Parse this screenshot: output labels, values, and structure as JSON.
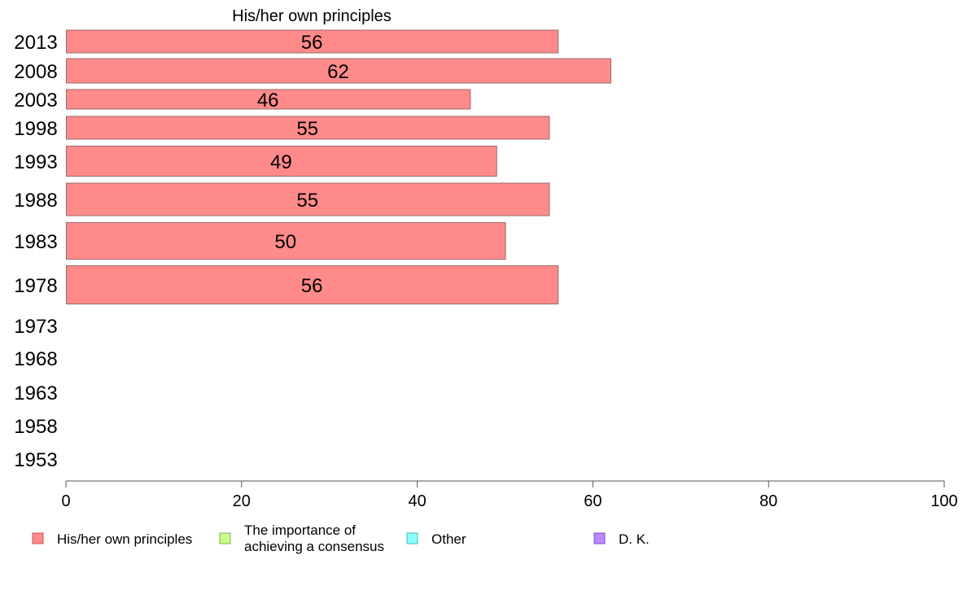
{
  "chart_data": {
    "type": "bar",
    "orientation": "horizontal",
    "title": "His/her own principles",
    "categories": [
      "2013",
      "2008",
      "2003",
      "1998",
      "1993",
      "1988",
      "1983",
      "1978",
      "1973",
      "1968",
      "1963",
      "1958",
      "1953"
    ],
    "series": [
      {
        "name": "His/her own principles",
        "color": "#ff8a8a",
        "values": [
          56,
          62,
          46,
          55,
          49,
          55,
          50,
          56,
          null,
          null,
          null,
          null,
          null
        ],
        "labels": [
          "56",
          "62",
          "46",
          "55",
          "49",
          "55",
          "50",
          "56",
          "",
          "",
          "",
          "",
          ""
        ]
      }
    ],
    "xlim": [
      0,
      100
    ],
    "xticks": [
      "0",
      "20",
      "40",
      "60",
      "80",
      "100"
    ],
    "grid": false,
    "legend": [
      {
        "lines": [
          "His/her own principles"
        ],
        "color": "#ff8a8a",
        "border": "#c05a5a"
      },
      {
        "lines": [
          "The importance of",
          "achieving a consensus"
        ],
        "color": "#c8ff8a",
        "border": "#88b050"
      },
      {
        "lines": [
          "Other"
        ],
        "color": "#8affff",
        "border": "#50b0b0"
      },
      {
        "lines": [
          "D. K."
        ],
        "color": "#bb88ff",
        "border": "#7a50c0"
      }
    ]
  }
}
